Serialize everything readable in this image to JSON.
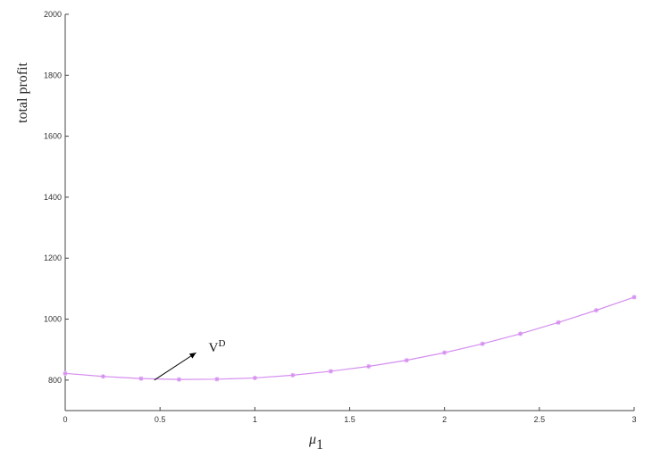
{
  "chart_data": {
    "type": "line",
    "title": "",
    "xlabel": "μ",
    "xlabel_subscript": "1",
    "ylabel": "total profit",
    "xlim": [
      0,
      3
    ],
    "ylim": [
      700,
      2000
    ],
    "grid": false,
    "x_ticks": [
      0,
      0.5,
      1,
      1.5,
      2,
      2.5,
      3
    ],
    "x_tick_labels": [
      "0",
      "0.5",
      "1",
      "1.5",
      "2",
      "2.5",
      "3"
    ],
    "y_ticks": [
      800,
      1000,
      1200,
      1400,
      1600,
      1800,
      2000
    ],
    "y_tick_labels": [
      "800",
      "1000",
      "1200",
      "1400",
      "1600",
      "1800",
      "2000"
    ],
    "series": [
      {
        "color": "#d58ef0",
        "marker": "star",
        "x": [
          0,
          0.2,
          0.4,
          0.6,
          0.8,
          1.0,
          1.2,
          1.4,
          1.6,
          1.8,
          2.0,
          2.2,
          2.4,
          2.6,
          2.8,
          3.0
        ],
        "y": [
          822,
          812,
          805,
          802,
          803,
          807,
          816,
          829,
          845,
          865,
          890,
          919,
          952,
          989,
          1029,
          1072
        ]
      }
    ],
    "annotation": {
      "text": "V",
      "superscript": "D",
      "arrow_from": [
        0.47,
        800
      ],
      "arrow_to": [
        0.69,
        890
      ]
    }
  }
}
